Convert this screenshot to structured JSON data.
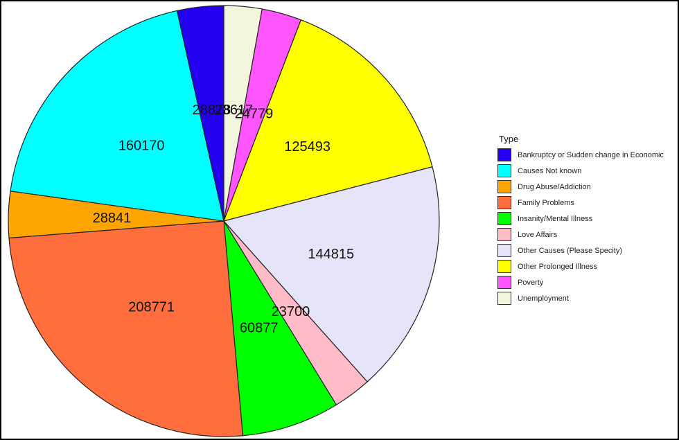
{
  "chart_data": {
    "type": "pie",
    "title": "",
    "legend_title": "Type",
    "legend_position": "right",
    "start": "top",
    "direction": "clockwise",
    "slices": [
      {
        "label": "Unemployment",
        "value": 23617,
        "color": "#F3F6DC"
      },
      {
        "label": "Poverty",
        "value": 24779,
        "color": "#FF55FF"
      },
      {
        "label": "Other Prolonged Illness",
        "value": 125493,
        "color": "#FFFF00"
      },
      {
        "label": "Other Causes (Please Specity)",
        "value": 144815,
        "color": "#E6E4F9"
      },
      {
        "label": "Love Affairs",
        "value": 23700,
        "color": "#FFBBC8"
      },
      {
        "label": "Insanity/Mental Illness",
        "value": 60877,
        "color": "#00FF00"
      },
      {
        "label": "Family Problems",
        "value": 208771,
        "color": "#FF6E3C"
      },
      {
        "label": "Drug Abuse/Addiction",
        "value": 28841,
        "color": "#FFA500"
      },
      {
        "label": "Causes Not known",
        "value": 160170,
        "color": "#00FFFF"
      },
      {
        "label": "Bankruptcy or Sudden change in Economic",
        "value": 28878,
        "color": "#2400F0"
      }
    ],
    "legend": [
      {
        "label": "Bankruptcy or Sudden change in Economic",
        "color": "#2400F0"
      },
      {
        "label": "Causes Not known",
        "color": "#00FFFF"
      },
      {
        "label": "Drug Abuse/Addiction",
        "color": "#FFA500"
      },
      {
        "label": "Family Problems",
        "color": "#FF6E3C"
      },
      {
        "label": "Insanity/Mental Illness",
        "color": "#00FF00"
      },
      {
        "label": "Love Affairs",
        "color": "#FFBBC8"
      },
      {
        "label": "Other Causes (Please Specity)",
        "color": "#E6E4F9"
      },
      {
        "label": "Other Prolonged Illness",
        "color": "#FFFF00"
      },
      {
        "label": "Poverty",
        "color": "#FF55FF"
      },
      {
        "label": "Unemployment",
        "color": "#F3F6DC"
      }
    ]
  }
}
